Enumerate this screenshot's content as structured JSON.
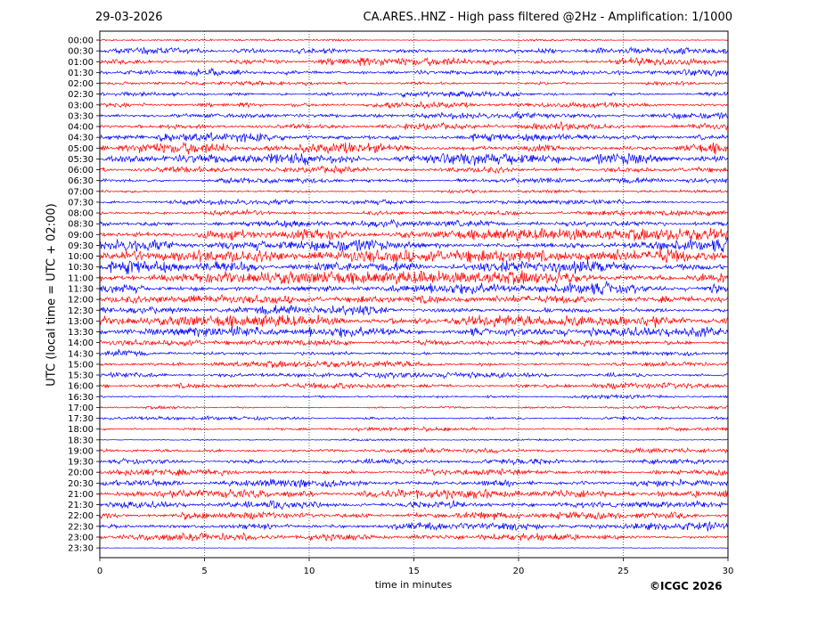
{
  "header": {
    "date": "29-03-2026",
    "title": "CA.ARES..HNZ - High pass filtered @2Hz - Amplification: 1/1000",
    "copyright": "©ICGC 2026"
  },
  "chart_data": {
    "type": "line",
    "title": "CA.ARES..HNZ - High pass filtered @2Hz - Amplification: 1/1000",
    "xlabel": "time in minutes",
    "ylabel": "UTC (local time = UTC + 02:00)",
    "xlim": [
      0,
      30
    ],
    "x_ticks": [
      0,
      5,
      10,
      15,
      20,
      25,
      30
    ],
    "grid": "vertical dotted lines at x ticks",
    "colors": [
      "#ff0000",
      "#0000ff"
    ],
    "rows": [
      {
        "label": "00:00",
        "amp": 0.15
      },
      {
        "label": "00:30",
        "amp": 0.5
      },
      {
        "label": "01:00",
        "amp": 0.6
      },
      {
        "label": "01:30",
        "amp": 0.55
      },
      {
        "label": "02:00",
        "amp": 0.35
      },
      {
        "label": "02:30",
        "amp": 0.4
      },
      {
        "label": "03:00",
        "amp": 0.5
      },
      {
        "label": "03:30",
        "amp": 0.5
      },
      {
        "label": "04:00",
        "amp": 0.6
      },
      {
        "label": "04:30",
        "amp": 0.65
      },
      {
        "label": "05:00",
        "amp": 0.85
      },
      {
        "label": "05:30",
        "amp": 0.9
      },
      {
        "label": "06:00",
        "amp": 0.55
      },
      {
        "label": "06:30",
        "amp": 0.45
      },
      {
        "label": "07:00",
        "amp": 0.3
      },
      {
        "label": "07:30",
        "amp": 0.4
      },
      {
        "label": "08:00",
        "amp": 0.45
      },
      {
        "label": "08:30",
        "amp": 0.6
      },
      {
        "label": "09:00",
        "amp": 0.9
      },
      {
        "label": "09:30",
        "amp": 0.95
      },
      {
        "label": "10:00",
        "amp": 1.0
      },
      {
        "label": "10:30",
        "amp": 1.0
      },
      {
        "label": "11:00",
        "amp": 1.0
      },
      {
        "label": "11:30",
        "amp": 0.9
      },
      {
        "label": "12:00",
        "amp": 0.6
      },
      {
        "label": "12:30",
        "amp": 0.75
      },
      {
        "label": "13:00",
        "amp": 0.9
      },
      {
        "label": "13:30",
        "amp": 0.85
      },
      {
        "label": "14:00",
        "amp": 0.5
      },
      {
        "label": "14:30",
        "amp": 0.55
      },
      {
        "label": "15:00",
        "amp": 0.5
      },
      {
        "label": "15:30",
        "amp": 0.5
      },
      {
        "label": "16:00",
        "amp": 0.45
      },
      {
        "label": "16:30",
        "amp": 0.3
      },
      {
        "label": "17:00",
        "amp": 0.25
      },
      {
        "label": "17:30",
        "amp": 0.3
      },
      {
        "label": "18:00",
        "amp": 0.3
      },
      {
        "label": "18:30",
        "amp": 0.15
      },
      {
        "label": "19:00",
        "amp": 0.35
      },
      {
        "label": "19:30",
        "amp": 0.5
      },
      {
        "label": "20:00",
        "amp": 0.5
      },
      {
        "label": "20:30",
        "amp": 0.7
      },
      {
        "label": "21:00",
        "amp": 0.7
      },
      {
        "label": "21:30",
        "amp": 0.65
      },
      {
        "label": "22:00",
        "amp": 0.6
      },
      {
        "label": "22:30",
        "amp": 0.7
      },
      {
        "label": "23:00",
        "amp": 0.55
      },
      {
        "label": "23:30",
        "amp": 0.05
      }
    ]
  }
}
